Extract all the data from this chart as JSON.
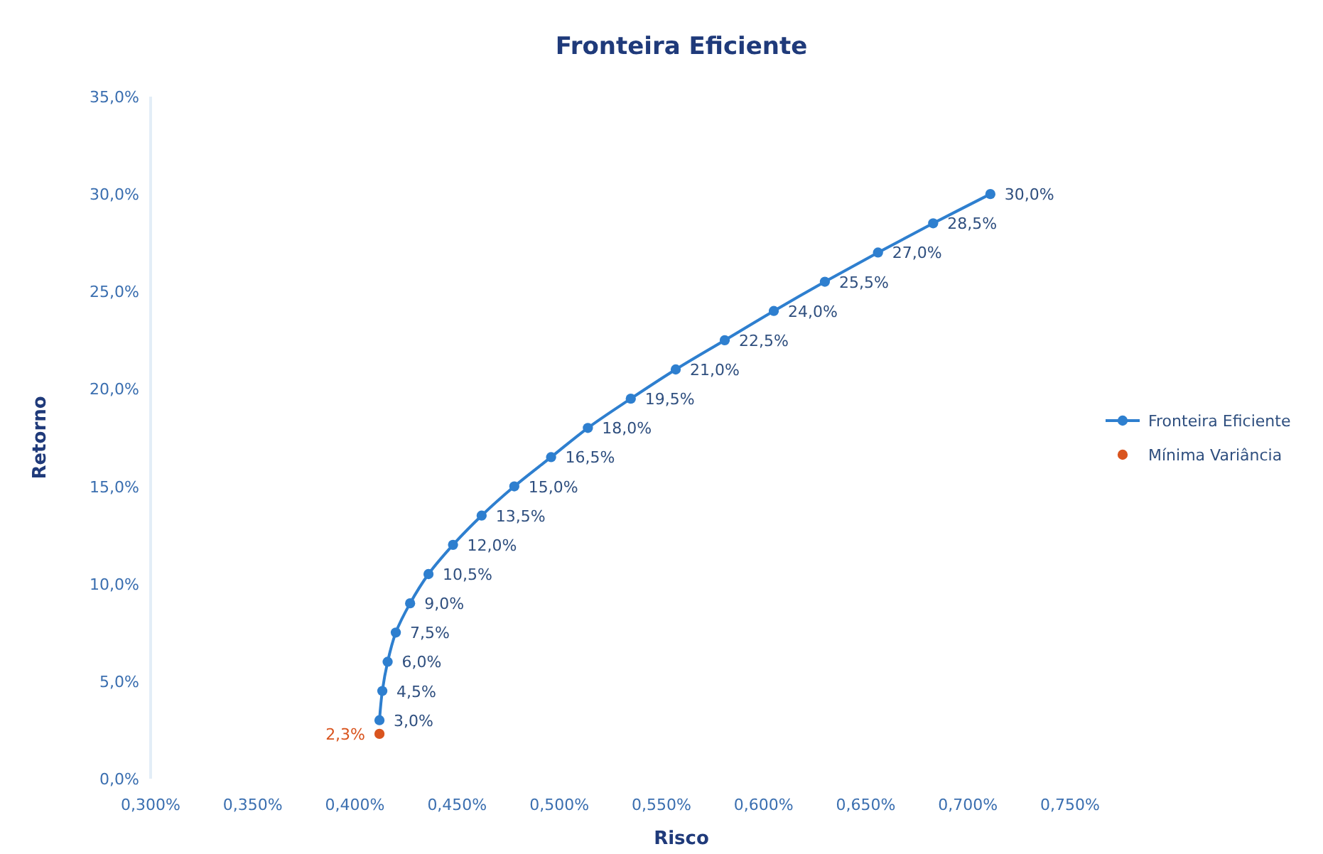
{
  "chart_data": {
    "type": "line",
    "title": "Fronteira Eficiente",
    "xlabel": "Risco",
    "ylabel": "Retorno",
    "xlim": [
      0.3,
      0.75
    ],
    "xticks": [
      {
        "value": 0.3,
        "label": "0,300%"
      },
      {
        "value": 0.35,
        "label": "0,350%"
      },
      {
        "value": 0.4,
        "label": "0,400%"
      },
      {
        "value": 0.45,
        "label": "0,450%"
      },
      {
        "value": 0.5,
        "label": "0,500%"
      },
      {
        "value": 0.55,
        "label": "0,550%"
      },
      {
        "value": 0.6,
        "label": "0,600%"
      },
      {
        "value": 0.65,
        "label": "0,650%"
      },
      {
        "value": 0.7,
        "label": "0,700%"
      },
      {
        "value": 0.75,
        "label": "0,750%"
      }
    ],
    "ylim": [
      0,
      35
    ],
    "yticks": [
      {
        "value": 0,
        "label": "0,0%"
      },
      {
        "value": 5,
        "label": "5,0%"
      },
      {
        "value": 10,
        "label": "10,0%"
      },
      {
        "value": 15,
        "label": "15,0%"
      },
      {
        "value": 20,
        "label": "20,0%"
      },
      {
        "value": 25,
        "label": "25,0%"
      },
      {
        "value": 30,
        "label": "30,0%"
      },
      {
        "value": 35,
        "label": "35,0%"
      }
    ],
    "grid": false,
    "legend": "right",
    "marker": "circle",
    "series": [
      {
        "name": "Fronteira Eficiente",
        "color": "#2e7fcf",
        "value_labels": [
          "3,0%",
          "4,5%",
          "6,0%",
          "7,5%",
          "9,0%",
          "10,5%",
          "12,0%",
          "13,5%",
          "15,0%",
          "16,5%",
          "18,0%",
          "19,5%",
          "21,0%",
          "22,5%",
          "24,0%",
          "25,5%",
          "27,0%",
          "28,5%",
          "30,0%"
        ],
        "x": [
          0.412,
          0.4134,
          0.416,
          0.42,
          0.427,
          0.436,
          0.448,
          0.462,
          0.478,
          0.496,
          0.514,
          0.535,
          0.557,
          0.581,
          0.605,
          0.63,
          0.656,
          0.683,
          0.711
        ],
        "values": [
          3.0,
          4.5,
          6.0,
          7.5,
          9.0,
          10.5,
          12.0,
          13.5,
          15.0,
          16.5,
          18.0,
          19.5,
          21.0,
          22.5,
          24.0,
          25.5,
          27.0,
          28.5,
          30.0
        ]
      },
      {
        "name": "Mínima Variância",
        "type": "scatter",
        "color": "#d9541e",
        "x": [
          0.412
        ],
        "values": [
          2.3
        ],
        "value_labels": [
          "2,3%"
        ]
      }
    ]
  }
}
